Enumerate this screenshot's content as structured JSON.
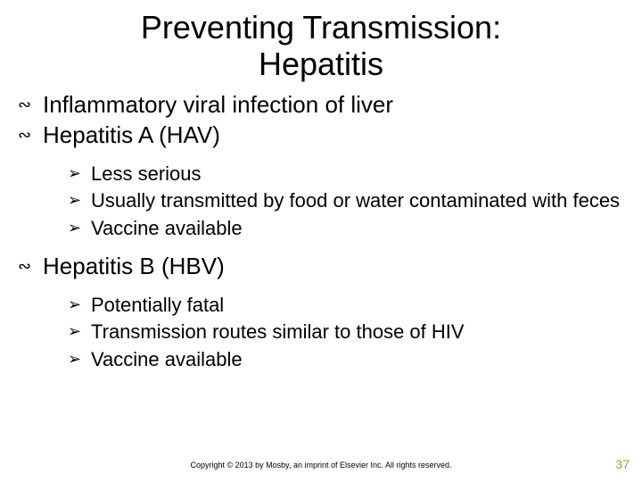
{
  "title_fontsize": 36,
  "l1_fontsize": 26,
  "l2_fontsize": 22,
  "text_color": "#000000",
  "background_color": "#ffffff",
  "slide_number_color": "#b98f4a",
  "l1_bullet_glyph": "∾",
  "l2_bullet_glyph": "➢",
  "title_line1": "Preventing Transmission:",
  "title_line2": "Hepatitis",
  "items": {
    "a": "Inflammatory viral infection of liver",
    "b": "Hepatitis A (HAV)",
    "b1": "Less serious",
    "b2": "Usually transmitted by food or water contaminated with feces",
    "b3": "Vaccine available",
    "c": "Hepatitis B (HBV)",
    "c1": "Potentially fatal",
    "c2": "Transmission routes similar to those of HIV",
    "c3": "Vaccine available"
  },
  "copyright": "Copyright © 2013 by Mosby, an imprint of Elsevier Inc. All rights reserved.",
  "slide_number": "37"
}
